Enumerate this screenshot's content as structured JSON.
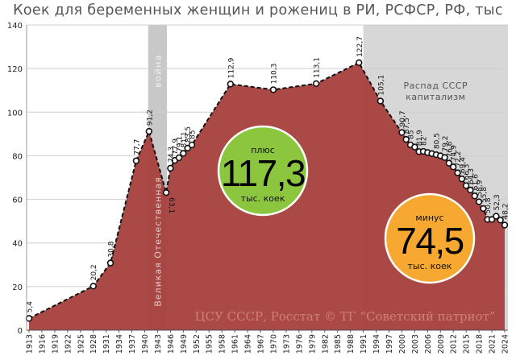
{
  "title": "Коек для беременных женщин и рожениц в РИ, РСФСР, РФ, тыс",
  "chart_data": {
    "type": "area",
    "title": "Коек для беременных женщин и рожениц в РИ, РСФСР, РФ, тыс",
    "xlabel": "",
    "ylabel": "",
    "ylim": [
      0,
      140
    ],
    "yticks": [
      0,
      20,
      40,
      60,
      80,
      100,
      120,
      140
    ],
    "grid": true,
    "x_tick_labels": [
      "1913",
      "1916",
      "1919",
      "1922",
      "1925",
      "1928",
      "1931",
      "1934",
      "1937",
      "1940",
      "1943",
      "1946",
      "1949",
      "1952",
      "1955",
      "1958",
      "1961",
      "1964",
      "1967",
      "1970",
      "1973",
      "1976",
      "1979",
      "1982",
      "1985",
      "1988",
      "1991",
      "1994",
      "1997",
      "2000",
      "2003",
      "2006",
      "2009",
      "2012",
      "2015",
      "2018",
      "2021",
      "2024"
    ],
    "series": [
      {
        "name": "Коек, тыс",
        "points": [
          {
            "x": 1913,
            "y": 5.4,
            "label": "5,4"
          },
          {
            "x": 1928,
            "y": 20.2,
            "label": "20,2"
          },
          {
            "x": 1932,
            "y": 30.8,
            "label": "30,8"
          },
          {
            "x": 1938,
            "y": 77.7,
            "label": "77,7"
          },
          {
            "x": 1941,
            "y": 91.2,
            "label": "91,2"
          },
          {
            "x": 1945,
            "y": 63.1,
            "label": "63,1"
          },
          {
            "x": 1946,
            "y": 74.3,
            "label": "74,3"
          },
          {
            "x": 1947,
            "y": 77.9,
            "label": "77,9"
          },
          {
            "x": 1948,
            "y": 79.1,
            "label": "79,1"
          },
          {
            "x": 1949,
            "y": 81.1,
            "label": "81,1"
          },
          {
            "x": 1950,
            "y": 83.5,
            "label": "83,5"
          },
          {
            "x": 1951,
            "y": 85,
            "label": "85"
          },
          {
            "x": 1960,
            "y": 112.9,
            "label": "112,9"
          },
          {
            "x": 1970,
            "y": 110.3,
            "label": "110,3"
          },
          {
            "x": 1980,
            "y": 113.1,
            "label": "113,1"
          },
          {
            "x": 1990,
            "y": 122.7,
            "label": "122,7"
          },
          {
            "x": 1995,
            "y": 105.1,
            "label": "105,1"
          },
          {
            "x": 2000,
            "y": 90.7,
            "label": "90,7"
          },
          {
            "x": 2001,
            "y": 87.5,
            "label": "87,5"
          },
          {
            "x": 2002,
            "y": 85,
            "label": "85"
          },
          {
            "x": 2003,
            "y": 84,
            "label": ""
          },
          {
            "x": 2004,
            "y": 81.9,
            "label": "81,9"
          },
          {
            "x": 2005,
            "y": 82,
            "label": "82"
          },
          {
            "x": 2006,
            "y": 81.5,
            "label": ""
          },
          {
            "x": 2007,
            "y": 81,
            "label": ""
          },
          {
            "x": 2008,
            "y": 80.5,
            "label": "80,5"
          },
          {
            "x": 2009,
            "y": 80,
            "label": ""
          },
          {
            "x": 2010,
            "y": 79.2,
            "label": "79,2"
          },
          {
            "x": 2011,
            "y": 76.6,
            "label": "76,6"
          },
          {
            "x": 2012,
            "y": 74.9,
            "label": "74,9"
          },
          {
            "x": 2013,
            "y": 72.2,
            "label": "72,2"
          },
          {
            "x": 2014,
            "y": 69.4,
            "label": "69,4"
          },
          {
            "x": 2015,
            "y": 66.3,
            "label": "66,3"
          },
          {
            "x": 2016,
            "y": 64.3,
            "label": "64,3"
          },
          {
            "x": 2017,
            "y": 61.6,
            "label": "61,6"
          },
          {
            "x": 2018,
            "y": 58.9,
            "label": "58,9"
          },
          {
            "x": 2019,
            "y": 55.8,
            "label": "55,8"
          },
          {
            "x": 2020,
            "y": 50.8,
            "label": "50,8"
          },
          {
            "x": 2021,
            "y": 50.8,
            "label": ""
          },
          {
            "x": 2022,
            "y": 52.3,
            "label": "52,3"
          },
          {
            "x": 2023,
            "y": 50.5,
            "label": ""
          },
          {
            "x": 2024,
            "y": 48.2,
            "label": "48,2"
          }
        ]
      }
    ],
    "annotations": {
      "war": {
        "label": "война",
        "span": [
          1941,
          1945
        ]
      },
      "war_vertical": "Великая Отечественная",
      "collapse": {
        "title": "Распад СССР",
        "subtitle": "капитализм",
        "from": 1991
      },
      "source": "ЦСУ СССР, Росстат © ТГ “Советский патриот”"
    },
    "bubbles": [
      {
        "top": "плюс",
        "value": "117,3",
        "bottom": "тыс. коек",
        "color": "#8cc63f"
      },
      {
        "top": "минус",
        "value": "74,5",
        "bottom": "тыс. коек",
        "color": "#f7a830"
      }
    ]
  },
  "colors": {
    "area": "#a8423e",
    "war_band": "#c8c8c8",
    "collapse_band": "#d0d0d0",
    "line": "#111111"
  }
}
